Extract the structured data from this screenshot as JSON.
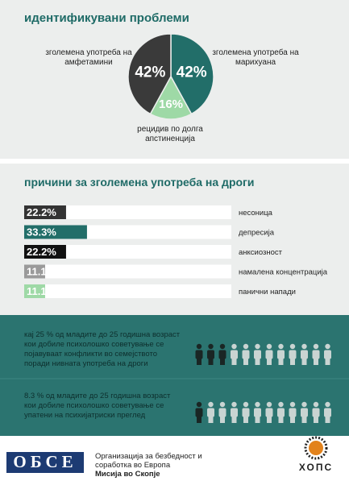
{
  "chart_data": [
    {
      "type": "pie",
      "title": "идентификувани проблеми",
      "categories": [
        "зголемена употреба на марихуана",
        "рецидив по долга апстиненција",
        "зголемена употреба на амфетамини"
      ],
      "values": [
        42,
        16,
        42
      ],
      "value_labels": [
        "42%",
        "16%",
        "42%"
      ],
      "colors": [
        "#226e69",
        "#9ed9a6",
        "#3a3a3a"
      ]
    },
    {
      "type": "bar",
      "title": "причини за зголемена употреба на дроги",
      "categories": [
        "несоница",
        "депресија",
        "анксиозност",
        "намалена концентрација",
        "панични напади"
      ],
      "values": [
        22.2,
        33.3,
        22.2,
        11.1,
        11.1
      ],
      "value_labels": [
        "22.2%",
        "33.3%",
        "22.2%",
        "11.1%",
        "11.1%"
      ],
      "colors": [
        "#333333",
        "#226e69",
        "#111111",
        "#9a9a9a",
        "#9ed9a6"
      ]
    }
  ],
  "facts": [
    {
      "lines": [
        "кај 25 % од младите до 25 годишна возраст",
        "кои добиле психолошко советување се",
        "појавуваат конфликти во семејството",
        "поради нивната употреба на дроги"
      ],
      "icons": {
        "total": 12,
        "highlighted": 3
      }
    },
    {
      "lines": [
        "8.3 % од младите до 25 годишна возраст",
        "кои добиле психолошко советување се",
        "упатени на психијатриски преглед"
      ],
      "icons": {
        "total": 12,
        "highlighted": 1
      }
    }
  ],
  "footer": {
    "logo": "ОБСЕ",
    "org_lines": [
      "Организација за безбедност и",
      "соработка во Европа"
    ],
    "mission": "Мисија во Скопје",
    "partner": "ХОПС"
  }
}
